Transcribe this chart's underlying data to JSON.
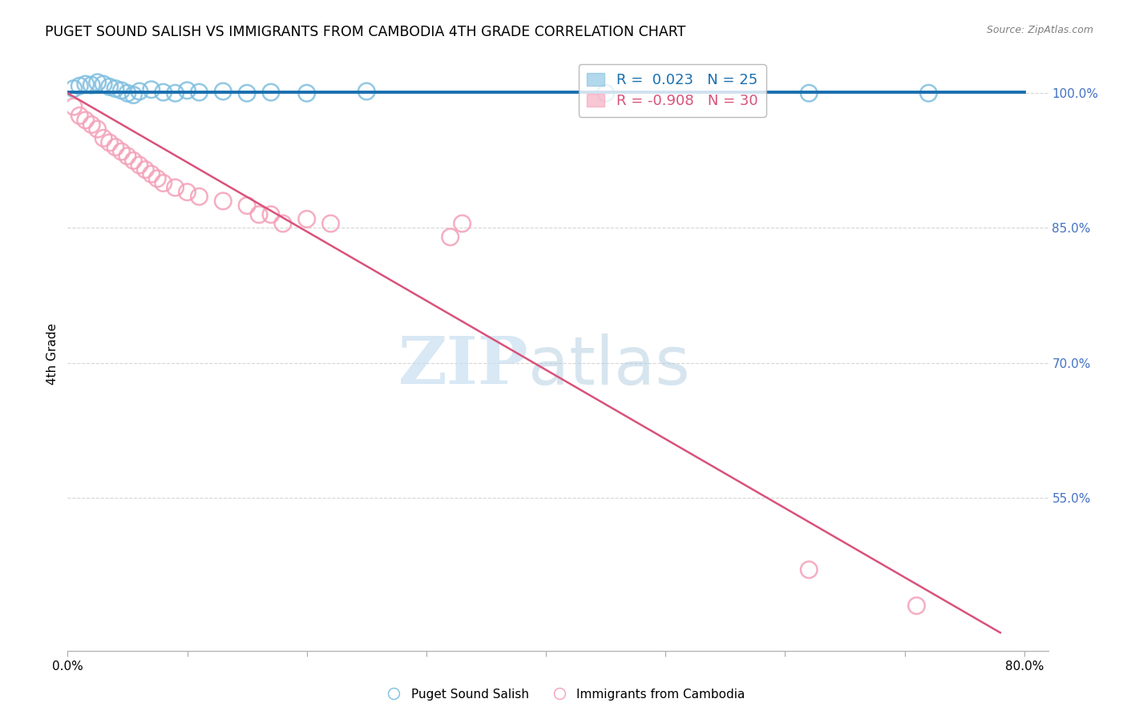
{
  "title": "PUGET SOUND SALISH VS IMMIGRANTS FROM CAMBODIA 4TH GRADE CORRELATION CHART",
  "source": "Source: ZipAtlas.com",
  "ylabel": "4th Grade",
  "blue_R": "0.023",
  "blue_N": "25",
  "pink_R": "-0.908",
  "pink_N": "30",
  "legend_label_blue": "Puget Sound Salish",
  "legend_label_pink": "Immigrants from Cambodia",
  "blue_color": "#7fbfdf",
  "pink_color": "#f4a0b8",
  "blue_line_color": "#1a6faf",
  "pink_line_color": "#d9527a",
  "watermark_zip_color": "#c8dff0",
  "watermark_atlas_color": "#b0cce0",
  "blue_dots": [
    [
      0.5,
      100.5
    ],
    [
      1.0,
      100.8
    ],
    [
      1.5,
      101.0
    ],
    [
      2.0,
      100.9
    ],
    [
      2.5,
      101.2
    ],
    [
      3.0,
      101.0
    ],
    [
      3.5,
      100.7
    ],
    [
      4.0,
      100.5
    ],
    [
      4.5,
      100.3
    ],
    [
      5.0,
      100.0
    ],
    [
      5.5,
      99.8
    ],
    [
      6.0,
      100.2
    ],
    [
      7.0,
      100.4
    ],
    [
      8.0,
      100.1
    ],
    [
      9.0,
      100.0
    ],
    [
      10.0,
      100.3
    ],
    [
      11.0,
      100.1
    ],
    [
      13.0,
      100.2
    ],
    [
      15.0,
      100.0
    ],
    [
      17.0,
      100.1
    ],
    [
      20.0,
      100.0
    ],
    [
      25.0,
      100.2
    ],
    [
      45.0,
      100.0
    ],
    [
      62.0,
      100.0
    ],
    [
      72.0,
      100.0
    ]
  ],
  "pink_dots": [
    [
      0.5,
      98.5
    ],
    [
      1.0,
      97.5
    ],
    [
      1.5,
      97.0
    ],
    [
      2.0,
      96.5
    ],
    [
      2.5,
      96.0
    ],
    [
      3.0,
      95.0
    ],
    [
      3.5,
      94.5
    ],
    [
      4.0,
      94.0
    ],
    [
      4.5,
      93.5
    ],
    [
      5.0,
      93.0
    ],
    [
      5.5,
      92.5
    ],
    [
      6.0,
      92.0
    ],
    [
      6.5,
      91.5
    ],
    [
      7.0,
      91.0
    ],
    [
      7.5,
      90.5
    ],
    [
      8.0,
      90.0
    ],
    [
      9.0,
      89.5
    ],
    [
      10.0,
      89.0
    ],
    [
      11.0,
      88.5
    ],
    [
      13.0,
      88.0
    ],
    [
      15.0,
      87.5
    ],
    [
      16.0,
      86.5
    ],
    [
      17.0,
      86.5
    ],
    [
      18.0,
      85.5
    ],
    [
      20.0,
      86.0
    ],
    [
      22.0,
      85.5
    ],
    [
      32.0,
      84.0
    ],
    [
      33.0,
      85.5
    ],
    [
      62.0,
      47.0
    ],
    [
      71.0,
      43.0
    ]
  ],
  "blue_line": {
    "x0": 0,
    "x1": 80,
    "y0": 100.1,
    "y1": 100.1
  },
  "pink_line": {
    "x0": 0,
    "x1": 78,
    "y0": 100.0,
    "y1": 40.0
  },
  "xlim": [
    0,
    82
  ],
  "ylim": [
    38,
    104
  ],
  "y_ticks_right": [
    100.0,
    85.0,
    70.0,
    55.0
  ],
  "y_tick_labels_right": [
    "100.0%",
    "85.0%",
    "70.0%",
    "55.0%"
  ],
  "x_tick_positions": [
    0,
    10,
    20,
    30,
    40,
    50,
    60,
    70,
    80
  ],
  "background_color": "#ffffff",
  "grid_color": "#cccccc"
}
